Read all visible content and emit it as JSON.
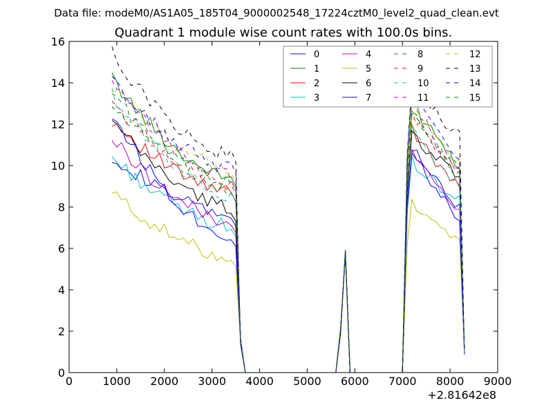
{
  "header": {
    "data_file": "Data file: modeM0/AS1A05_185T04_9000002548_17224cztM0_level2_quad_clean.evt"
  },
  "chart_data": {
    "type": "line",
    "title": "Quadrant 1 module wise count rates with 100.0s bins.",
    "xlabel": "",
    "ylabel": "",
    "x_offset_label": "+2.81642e8",
    "xlim": [
      0,
      9000
    ],
    "ylim": [
      0,
      16
    ],
    "xticks": [
      0,
      1000,
      2000,
      3000,
      4000,
      5000,
      6000,
      7000,
      8000,
      9000
    ],
    "yticks": [
      0,
      2,
      4,
      6,
      8,
      10,
      12,
      14,
      16
    ],
    "legend_position": "upper-right",
    "segments": [
      {
        "start": 900,
        "end": 3400,
        "step": 100
      },
      {
        "start": 7200,
        "end": 8200,
        "step": 100
      }
    ],
    "edges": {
      "x": [
        3500,
        3600,
        3700,
        5600,
        5700,
        5800,
        5900,
        7000,
        7100,
        8300
      ],
      "values": [
        7.0,
        1.5,
        0,
        0,
        2.0,
        5.8,
        0,
        0,
        6.5,
        1.0
      ]
    },
    "series": [
      {
        "name": "0",
        "color": "#0000ff",
        "dash": false,
        "start": 10.5,
        "end": 7.6,
        "flare": 10.8,
        "flare_end": 8.1
      },
      {
        "name": "1",
        "color": "#008000",
        "dash": false,
        "start": 14.2,
        "end": 9.4,
        "flare": 13.1,
        "flare_end": 10.1
      },
      {
        "name": "2",
        "color": "#ff0000",
        "dash": false,
        "start": 12.2,
        "end": 8.7,
        "flare": 11.8,
        "flare_end": 9.0
      },
      {
        "name": "3",
        "color": "#00bfbf",
        "dash": false,
        "start": 10.4,
        "end": 7.1,
        "flare": 10.2,
        "flare_end": 8.4
      },
      {
        "name": "4",
        "color": "#bf00bf",
        "dash": false,
        "start": 11.3,
        "end": 7.3,
        "flare": 10.6,
        "flare_end": 8.0
      },
      {
        "name": "5",
        "color": "#bfbf00",
        "dash": false,
        "start": 8.7,
        "end": 5.6,
        "flare": 8.2,
        "flare_end": 6.5
      },
      {
        "name": "6",
        "color": "#000000",
        "dash": false,
        "start": 12.1,
        "end": 8.0,
        "flare": 11.5,
        "flare_end": 9.6
      },
      {
        "name": "7",
        "color": "#0000ff",
        "dash": false,
        "start": 12.5,
        "end": 6.6,
        "flare": 10.9,
        "flare_end": 7.6
      },
      {
        "name": "8",
        "color": "#008000",
        "dash": true,
        "start": 13.6,
        "end": 8.8,
        "flare": 12.9,
        "flare_end": 9.6
      },
      {
        "name": "9",
        "color": "#ff0000",
        "dash": true,
        "start": 13.1,
        "end": 9.1,
        "flare": 12.6,
        "flare_end": 9.7
      },
      {
        "name": "10",
        "color": "#00bfbf",
        "dash": true,
        "start": 13.4,
        "end": 8.6,
        "flare": 12.2,
        "flare_end": 8.9
      },
      {
        "name": "11",
        "color": "#bf00bf",
        "dash": true,
        "start": 13.9,
        "end": 9.5,
        "flare": 13.3,
        "flare_end": 9.8
      },
      {
        "name": "12",
        "color": "#bfbf00",
        "dash": true,
        "start": 13.8,
        "end": 9.9,
        "flare": 13.1,
        "flare_end": 10.1
      },
      {
        "name": "13",
        "color": "#000000",
        "dash": true,
        "start": 15.4,
        "end": 10.5,
        "flare": 14.1,
        "flare_end": 11.5
      },
      {
        "name": "14",
        "color": "#0000ff",
        "dash": true,
        "start": 14.1,
        "end": 9.9,
        "flare": 13.8,
        "flare_end": 10.3
      },
      {
        "name": "15",
        "color": "#008000",
        "dash": true,
        "start": 12.9,
        "end": 9.2,
        "flare": 12.7,
        "flare_end": 9.8
      }
    ]
  }
}
